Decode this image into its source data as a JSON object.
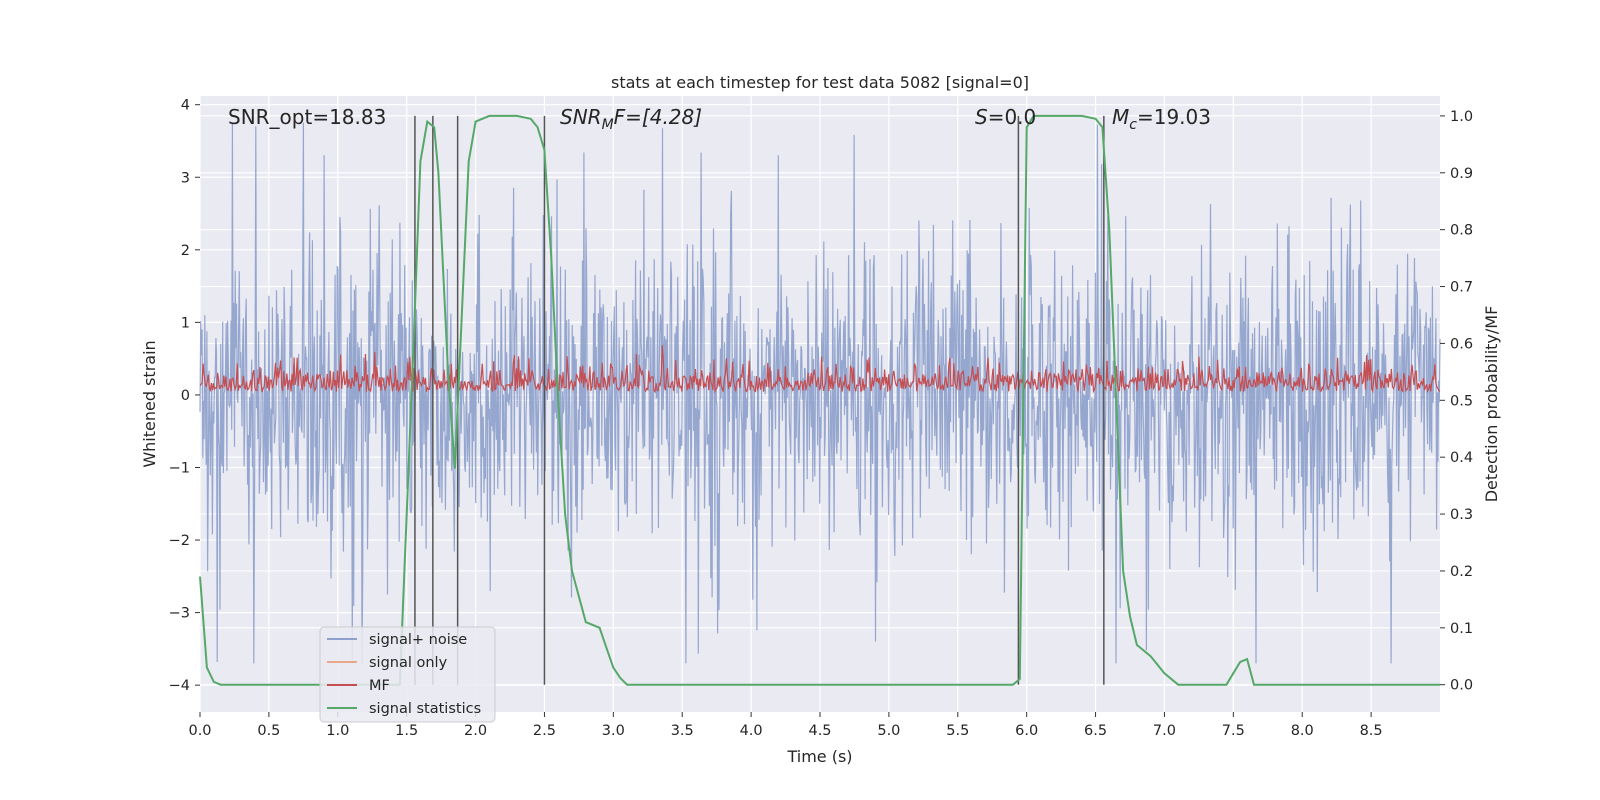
{
  "chart_data": {
    "type": "line",
    "title": "stats at each timestep for test data 5082 [signal=0]",
    "xlabel": "Time (s)",
    "ylabel": "Whitened strain",
    "y2label": "Detection probability/MF",
    "xlim": [
      0.0,
      9.0
    ],
    "ylim": [
      -4.37,
      4.12
    ],
    "y2lim": [
      -0.048,
      1.035
    ],
    "x_ticks": [
      "0.0",
      "0.5",
      "1.0",
      "1.5",
      "2.0",
      "2.5",
      "3.0",
      "3.5",
      "4.0",
      "4.5",
      "5.0",
      "5.5",
      "6.0",
      "6.5",
      "7.0",
      "7.5",
      "8.0",
      "8.5"
    ],
    "y_ticks": [
      "4",
      "3",
      "2",
      "1",
      "0",
      "−1",
      "−2",
      "−3",
      "−4"
    ],
    "y2_ticks": [
      "1.0",
      "0.9",
      "0.8",
      "0.7",
      "0.6",
      "0.5",
      "0.4",
      "0.3",
      "0.2",
      "0.1",
      "0.0"
    ],
    "grid": true,
    "legend_position": "lower-left",
    "annotations": {
      "snr_opt": "SNR_opt=18.83",
      "snr_mf_base": "SNR",
      "snr_mf_sub": "M",
      "snr_mf_rest": "F=[4.28]",
      "s_base": "S",
      "s_rest": "=0.0",
      "mc_base": "M",
      "mc_sub": "c",
      "mc_rest": "=19.03"
    },
    "vertical_lines_x": [
      1.56,
      1.69,
      1.87,
      2.5,
      5.94,
      6.56
    ],
    "vertical_lines_range_y2": [
      0.0,
      1.0
    ],
    "series": [
      {
        "name": "signal+ noise",
        "color": "#8da0cb",
        "axis": "left",
        "description": "whitened strain noise, roughly within -2 to +2.5 with spikes to ±3.7"
      },
      {
        "name": "signal only",
        "color": "#e9a88c",
        "axis": "left",
        "values": []
      },
      {
        "name": "MF",
        "color": "#c44e52",
        "axis": "right",
        "description": "matched filter output, roughly 0.51 to 0.60"
      },
      {
        "name": "signal statistics",
        "color": "#55a868",
        "axis": "right",
        "x": [
          0.0,
          0.05,
          0.1,
          0.15,
          0.2,
          0.3,
          0.5,
          1.0,
          1.3,
          1.45,
          1.5,
          1.55,
          1.6,
          1.65,
          1.7,
          1.73,
          1.77,
          1.8,
          1.85,
          1.9,
          1.95,
          2.0,
          2.1,
          2.3,
          2.4,
          2.45,
          2.5,
          2.55,
          2.6,
          2.65,
          2.7,
          2.8,
          2.9,
          2.95,
          3.0,
          3.05,
          3.1,
          3.3,
          4.0,
          5.0,
          5.8,
          5.9,
          5.95,
          6.0,
          6.05,
          6.2,
          6.4,
          6.5,
          6.55,
          6.6,
          6.65,
          6.7,
          6.75,
          6.8,
          6.9,
          7.0,
          7.1,
          7.3,
          7.4,
          7.45,
          7.5,
          7.55,
          7.6,
          7.65,
          8.0,
          9.0
        ],
        "values": [
          0.19,
          0.03,
          0.005,
          0.0,
          0.0,
          0.0,
          0.0,
          0.0,
          0.0,
          0.0,
          0.3,
          0.6,
          0.92,
          0.99,
          0.98,
          0.9,
          0.7,
          0.55,
          0.38,
          0.65,
          0.92,
          0.99,
          1.0,
          1.0,
          0.995,
          0.98,
          0.94,
          0.75,
          0.5,
          0.3,
          0.2,
          0.11,
          0.1,
          0.065,
          0.03,
          0.012,
          0.0,
          0.0,
          0.0,
          0.0,
          0.0,
          0.0,
          0.01,
          0.98,
          1.0,
          1.0,
          1.0,
          0.995,
          0.98,
          0.8,
          0.5,
          0.2,
          0.12,
          0.07,
          0.05,
          0.02,
          0.0,
          0.0,
          0.0,
          0.0,
          0.02,
          0.04,
          0.045,
          0.0,
          0.0,
          0.0
        ]
      }
    ]
  }
}
